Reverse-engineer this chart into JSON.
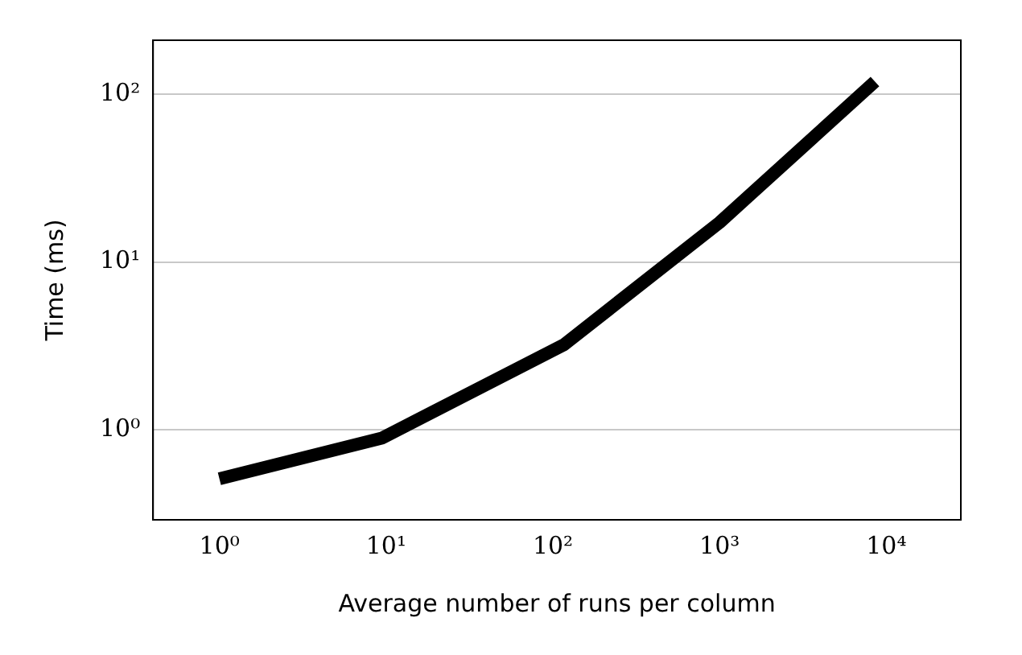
{
  "chart_data": {
    "type": "line",
    "xlabel": "Average number of runs per column",
    "ylabel": "Time (ms)",
    "x": [
      1,
      9.4,
      116,
      1000,
      8550
    ],
    "series": [
      {
        "color": "#000000",
        "values": [
          0.51,
          0.89,
          3.2,
          17.2,
          119
        ]
      }
    ],
    "log": "xy",
    "xlim": [
      0.4,
      28000
    ],
    "ylim": [
      0.29,
      210
    ],
    "xticks": [
      {
        "value": 1,
        "label": "10⁰"
      },
      {
        "value": 10,
        "label": "10¹"
      },
      {
        "value": 100,
        "label": "10²"
      },
      {
        "value": 1000,
        "label": "10³"
      },
      {
        "value": 10000,
        "label": "10⁴"
      }
    ],
    "yticks": [
      {
        "value": 1,
        "label": "10⁰"
      },
      {
        "value": 10,
        "label": "10¹"
      },
      {
        "value": 100,
        "label": "10²"
      }
    ],
    "grid": "y",
    "legend": false,
    "marker": "none",
    "line_style": "solid"
  }
}
